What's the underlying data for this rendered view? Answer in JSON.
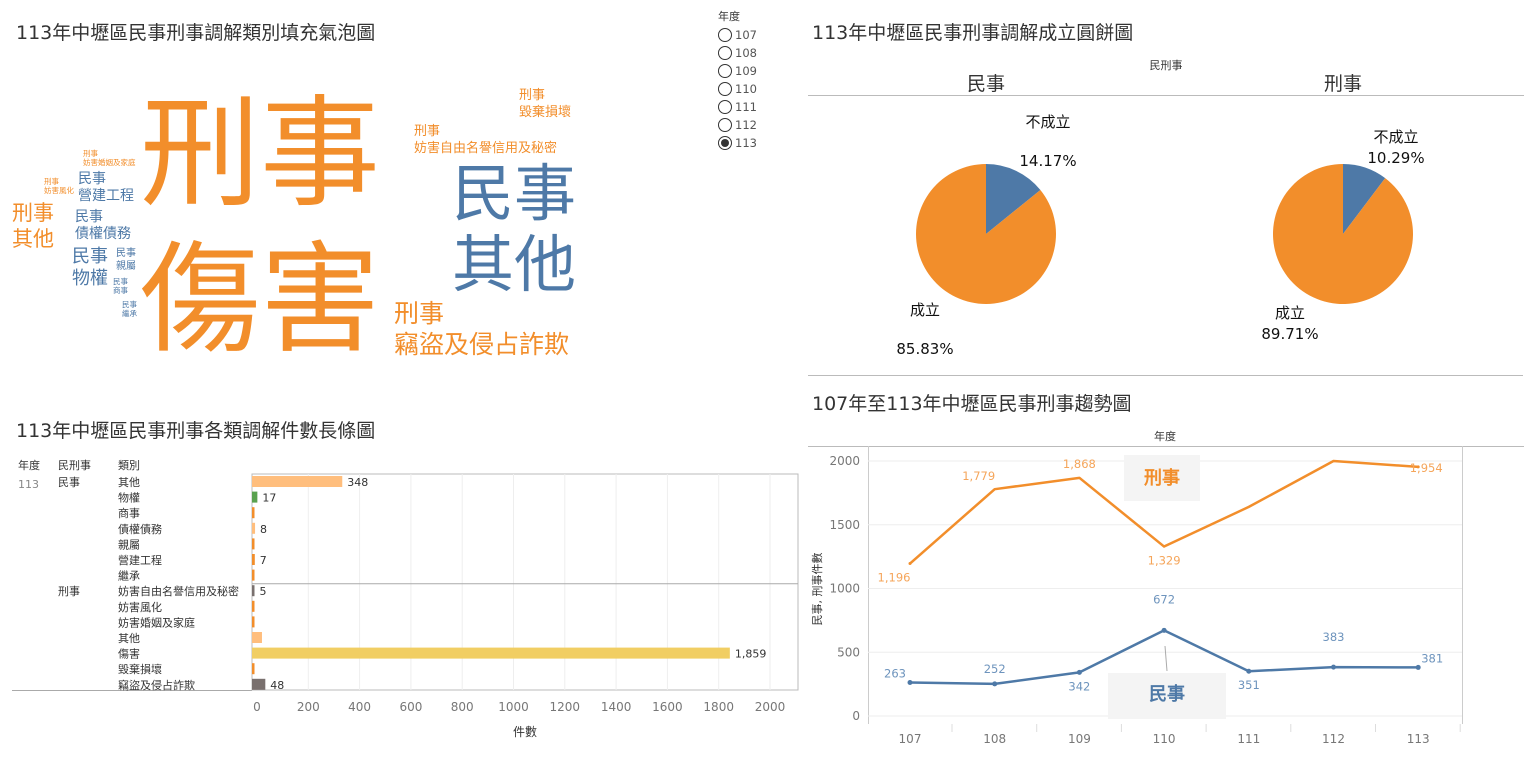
{
  "colors": {
    "orange": "#F28E2B",
    "blue": "#4E79A7",
    "light_orange": "#FFBE7D",
    "green": "#59A14F",
    "yellow": "#F1CE63",
    "brown": "#79706E"
  },
  "panels": {
    "bubble_title": "113年中壢區民事刑事調解類別填充氣泡圖",
    "pie_title": "113年中壢區民事刑事調解成立圓餅圖",
    "bar_title": "113年中壢區民事刑事各類調解件數長條圖",
    "trend_title": "107年至113年中壢區民事刑事趨勢圖"
  },
  "year_filter": {
    "label": "年度",
    "options": [
      "107",
      "108",
      "109",
      "110",
      "111",
      "112",
      "113"
    ],
    "selected": "113"
  },
  "chart_data": [
    {
      "type": "word_cloud",
      "title": "113年中壢區民事刑事調解類別填充氣泡圖",
      "words": [
        {
          "lines": [
            "刑事",
            "傷害"
          ],
          "category": "刑事"
        },
        {
          "lines": [
            "民事",
            "其他"
          ],
          "category": "民事"
        },
        {
          "lines": [
            "刑事",
            "毀棄損壞"
          ],
          "category": "刑事"
        },
        {
          "lines": [
            "刑事",
            "妨害自由名譽信用及秘密"
          ],
          "category": "刑事"
        },
        {
          "lines": [
            "刑事",
            "竊盜及侵占詐欺"
          ],
          "category": "刑事"
        },
        {
          "lines": [
            "刑事",
            "其他"
          ],
          "category": "刑事"
        },
        {
          "lines": [
            "刑事",
            "妨害婚姻及家庭"
          ],
          "category": "刑事"
        },
        {
          "lines": [
            "刑事",
            "妨害風化"
          ],
          "category": "刑事"
        },
        {
          "lines": [
            "民事",
            "營建工程"
          ],
          "category": "民事"
        },
        {
          "lines": [
            "民事",
            "債權債務"
          ],
          "category": "民事"
        },
        {
          "lines": [
            "民事",
            "物權"
          ],
          "category": "民事"
        },
        {
          "lines": [
            "民事",
            "親屬"
          ],
          "category": "民事"
        },
        {
          "lines": [
            "民事",
            "商事"
          ],
          "category": "民事"
        },
        {
          "lines": [
            "民事",
            "繼承"
          ],
          "category": "民事"
        }
      ]
    },
    {
      "type": "pie",
      "title": "113年中壢區民事刑事調解成立圓餅圖",
      "facet_label": "民刑事",
      "pies": [
        {
          "name": "民事",
          "slices": [
            {
              "label": "不成立",
              "percent": 14.17,
              "pct_text": "14.17%"
            },
            {
              "label": "成立",
              "percent": 85.83,
              "pct_text": "85.83%"
            }
          ]
        },
        {
          "name": "刑事",
          "slices": [
            {
              "label": "不成立",
              "percent": 10.29,
              "pct_text": "10.29%"
            },
            {
              "label": "成立",
              "percent": 89.71,
              "pct_text": "89.71%"
            }
          ]
        }
      ]
    },
    {
      "type": "bar",
      "title": "113年中壢區民事刑事各類調解件數長條圖",
      "orientation": "horizontal",
      "headers": [
        "年度",
        "民刑事",
        "類別"
      ],
      "year": "113",
      "groups": [
        {
          "name": "民事",
          "rows": [
            {
              "label": "其他",
              "value": 348,
              "value_text": "348"
            },
            {
              "label": "物權",
              "value": 17,
              "value_text": "17"
            },
            {
              "label": "商事",
              "value": 2,
              "value_text": ""
            },
            {
              "label": "債權債務",
              "value": 8,
              "value_text": "8"
            },
            {
              "label": "親屬",
              "value": 1,
              "value_text": ""
            },
            {
              "label": "營建工程",
              "value": 7,
              "value_text": "7"
            },
            {
              "label": "繼承",
              "value": 1,
              "value_text": ""
            }
          ]
        },
        {
          "name": "刑事",
          "rows": [
            {
              "label": "妨害自由名譽信用及秘密",
              "value": 5,
              "value_text": "5"
            },
            {
              "label": "妨害風化",
              "value": 1,
              "value_text": ""
            },
            {
              "label": "妨害婚姻及家庭",
              "value": 1,
              "value_text": ""
            },
            {
              "label": "其他",
              "value": 35,
              "value_text": ""
            },
            {
              "label": "傷害",
              "value": 1859,
              "value_text": "1,859"
            },
            {
              "label": "毀棄損壞",
              "value": 1,
              "value_text": ""
            },
            {
              "label": "竊盜及侵占詐欺",
              "value": 48,
              "value_text": "48"
            }
          ]
        }
      ],
      "xlabel": "件數",
      "xlim": [
        0,
        2100
      ],
      "xticks": [
        "0",
        "200",
        "400",
        "600",
        "800",
        "1000",
        "1200",
        "1400",
        "1600",
        "1800",
        "2000"
      ]
    },
    {
      "type": "line",
      "title": "107年至113年中壢區民事刑事趨勢圖",
      "top_label": "年度",
      "ylabel": "民事, 刑事件數",
      "x": [
        "107",
        "108",
        "109",
        "110",
        "111",
        "112",
        "113"
      ],
      "ylim": [
        0,
        2000
      ],
      "yticks": [
        "0",
        "500",
        "1000",
        "1500",
        "2000"
      ],
      "series": [
        {
          "name": "刑事",
          "values": [
            1196,
            1779,
            1868,
            1329,
            1640,
            2000,
            1954
          ],
          "labels": [
            "1,196",
            "1,779",
            "1,868",
            "1,329",
            "",
            "",
            "1,954"
          ]
        },
        {
          "name": "民事",
          "values": [
            263,
            252,
            342,
            672,
            351,
            383,
            381
          ],
          "labels": [
            "263",
            "252",
            "342",
            "672",
            "351",
            "383",
            "381"
          ]
        }
      ]
    }
  ]
}
